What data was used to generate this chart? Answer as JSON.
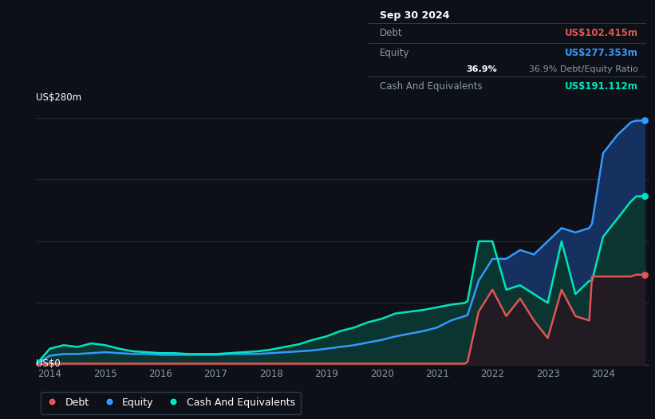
{
  "bg_color": "#0d1117",
  "plot_bg_color": "#0d1117",
  "grid_color": "#1e2d3d",
  "title_label": "US$280m",
  "zero_label": "US$0",
  "y_max": 280,
  "tooltip": {
    "date": "Sep 30 2024",
    "debt_label": "Debt",
    "debt_value": "US$102.415m",
    "debt_color": "#e05555",
    "equity_label": "Equity",
    "equity_value": "US$277.353m",
    "equity_color": "#3399ff",
    "ratio_value": "36.9%",
    "ratio_label": "Debt/Equity Ratio",
    "cash_label": "Cash And Equivalents",
    "cash_value": "US$191.112m",
    "cash_color": "#00e5bb"
  },
  "legend": [
    {
      "label": "Debt",
      "color": "#e05555"
    },
    {
      "label": "Equity",
      "color": "#3399ff"
    },
    {
      "label": "Cash And Equivalents",
      "color": "#00e5bb"
    }
  ],
  "years": [
    2013.75,
    2014.0,
    2014.25,
    2014.5,
    2014.75,
    2015.0,
    2015.25,
    2015.5,
    2015.75,
    2016.0,
    2016.25,
    2016.5,
    2016.75,
    2017.0,
    2017.25,
    2017.5,
    2017.75,
    2018.0,
    2018.25,
    2018.5,
    2018.75,
    2019.0,
    2019.25,
    2019.5,
    2019.75,
    2020.0,
    2020.25,
    2020.5,
    2020.75,
    2021.0,
    2021.25,
    2021.5,
    2021.55,
    2021.75,
    2022.0,
    2022.25,
    2022.5,
    2022.75,
    2023.0,
    2023.25,
    2023.5,
    2023.75,
    2023.8,
    2024.0,
    2024.25,
    2024.5,
    2024.6,
    2024.75
  ],
  "debt": [
    0,
    1,
    1,
    1,
    1,
    1,
    1,
    1,
    1,
    1,
    1,
    1,
    1,
    1,
    1,
    1,
    1,
    1,
    1,
    1,
    1,
    1,
    1,
    1,
    1,
    1,
    1,
    1,
    1,
    1,
    1,
    1,
    3,
    60,
    85,
    55,
    75,
    50,
    30,
    85,
    55,
    50,
    100,
    100,
    100,
    100,
    102,
    102
  ],
  "equity": [
    0,
    10,
    12,
    12,
    13,
    14,
    13,
    12,
    12,
    11,
    11,
    11,
    11,
    11,
    12,
    12,
    12,
    13,
    14,
    15,
    16,
    18,
    20,
    22,
    25,
    28,
    32,
    35,
    38,
    42,
    50,
    55,
    56,
    95,
    120,
    120,
    130,
    125,
    140,
    155,
    150,
    155,
    160,
    240,
    260,
    275,
    277,
    277
  ],
  "cash": [
    0,
    18,
    22,
    20,
    24,
    22,
    18,
    15,
    14,
    13,
    13,
    12,
    12,
    12,
    13,
    14,
    15,
    17,
    20,
    23,
    28,
    32,
    38,
    42,
    48,
    52,
    58,
    60,
    62,
    65,
    68,
    70,
    72,
    140,
    140,
    85,
    90,
    80,
    70,
    140,
    80,
    95,
    95,
    145,
    165,
    185,
    191,
    191
  ]
}
